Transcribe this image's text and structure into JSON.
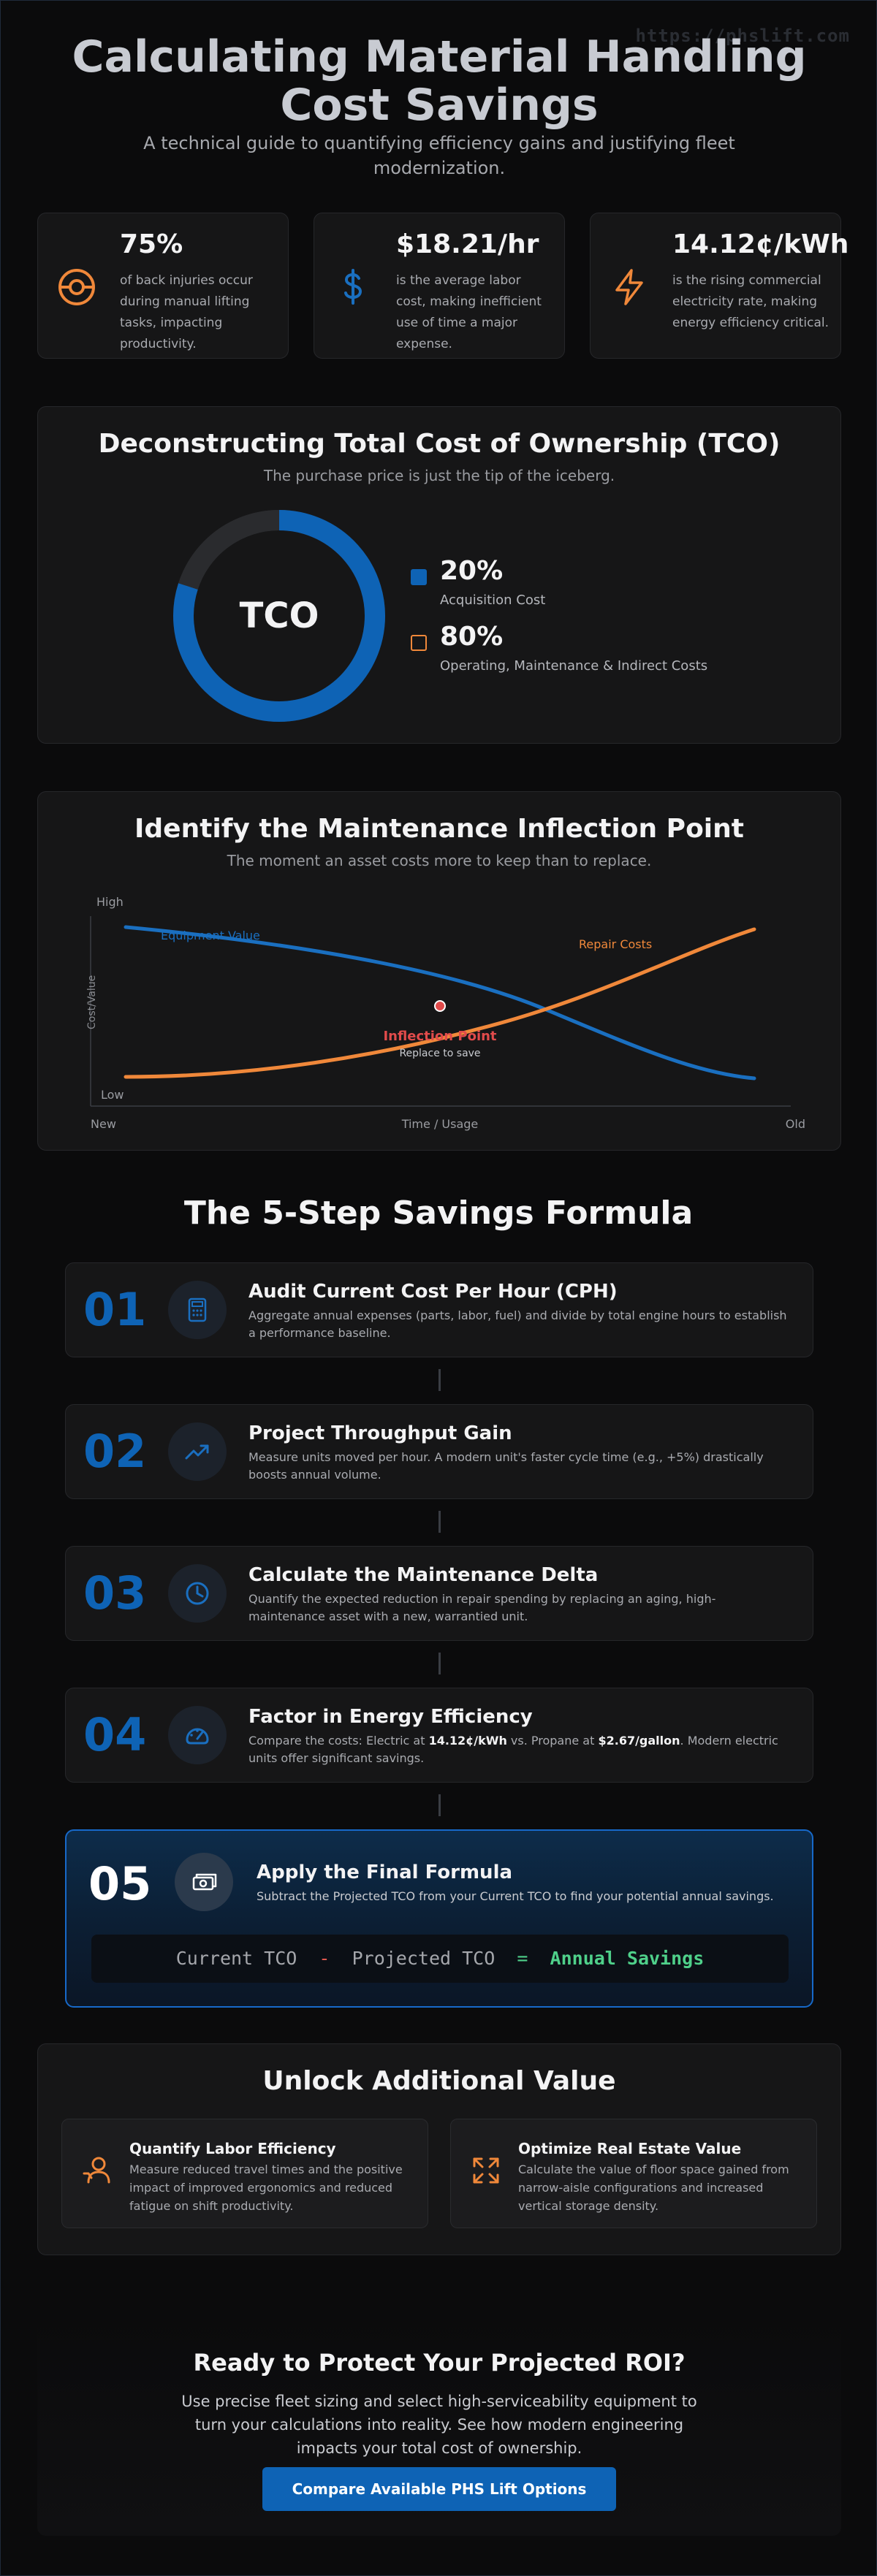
{
  "watermark": "https://phslift.com",
  "hero": {
    "title": "Calculating Material Handling Cost Savings",
    "subtitle": "A technical guide to quantifying efficiency gains and justifying fleet modernization."
  },
  "stats": [
    {
      "icon": "lifebuoy-icon",
      "value": "75%",
      "text": "of back injuries occur during manual lifting tasks, impacting productivity."
    },
    {
      "icon": "dollar-icon",
      "value": "$18.21/hr",
      "text": "is the average labor cost, making inefficient use of time a major expense."
    },
    {
      "icon": "lightning-icon",
      "value": "14.12¢/kWh",
      "text": "is the rising commercial electricity rate, making energy efficiency critical."
    }
  ],
  "tco": {
    "title": "Deconstructing Total Cost of Ownership (TCO)",
    "subtitle": "The purchase price is just the tip of the iceberg.",
    "center_label": "TCO",
    "colors": {
      "acquisition": "#0e63b5",
      "operating": "#f0883a",
      "track": "#2a2b2e"
    },
    "legend": [
      {
        "value": "20%",
        "label": "Acquisition Cost"
      },
      {
        "value": "80%",
        "label": "Operating, Maintenance & Indirect Costs"
      }
    ]
  },
  "chart_data": {
    "type": "pie",
    "categories": [
      "Acquisition Cost",
      "Operating, Maintenance & Indirect Costs"
    ],
    "values": [
      20,
      80
    ],
    "center_label": "TCO"
  },
  "inflection": {
    "title": "Identify the Maintenance Inflection Point",
    "subtitle": "The moment an asset costs more to keep than to replace.",
    "y_high": "High",
    "y_low": "Low",
    "y_axis": "Cost/Value",
    "x_left": "New",
    "x_mid": "Time / Usage",
    "x_right": "Old",
    "value_label": "Equipment Value",
    "repair_label": "Repair Costs",
    "point_label": "Inflection Point",
    "point_sub": "Replace to save",
    "colors": {
      "value": "#1a6fc0",
      "repair": "#f0883a",
      "point": "#e14b4b"
    }
  },
  "formula_section": {
    "title": "The 5-Step Savings Formula",
    "steps": [
      {
        "num": "01",
        "icon": "calculator-icon",
        "title": "Audit Current Cost Per Hour (CPH)",
        "desc": "Aggregate annual expenses (parts, labor, fuel) and divide by total engine hours to establish a performance baseline."
      },
      {
        "num": "02",
        "icon": "trend-up-icon",
        "title": "Project Throughput Gain",
        "desc": "Measure units moved per hour. A modern unit's faster cycle time (e.g., +5%) drastically boosts annual volume."
      },
      {
        "num": "03",
        "icon": "clock-icon",
        "title": "Calculate the Maintenance Delta",
        "desc": "Quantify the expected reduction in repair spending by replacing an aging, high-maintenance asset with a new, warrantied unit."
      },
      {
        "num": "04",
        "icon": "gauge-icon",
        "title": "Factor in Energy Efficiency",
        "desc_pre": "Compare the costs: Electric at ",
        "desc_b1": "14.12¢/kWh",
        "desc_mid": " vs. Propane at ",
        "desc_b2": "$2.67/gallon",
        "desc_post": ". Modern electric units offer significant savings."
      }
    ],
    "final": {
      "num": "05",
      "icon": "cash-icon",
      "title": "Apply the Final Formula",
      "desc": "Subtract the Projected TCO from your Current TCO to find your potential annual savings.",
      "term1": "Current TCO",
      "minus": "-",
      "term2": "Projected TCO",
      "equals": "=",
      "result": "Annual Savings"
    }
  },
  "unlock": {
    "title": "Unlock Additional Value",
    "items": [
      {
        "icon": "worker-icon",
        "title": "Quantify Labor Efficiency",
        "desc": "Measure reduced travel times and the positive impact of improved ergonomics and reduced fatigue on shift productivity."
      },
      {
        "icon": "expand-arrows-icon",
        "title": "Optimize Real Estate Value",
        "desc": "Calculate the value of floor space gained from narrow-aisle configurations and increased vertical storage density."
      }
    ]
  },
  "cta": {
    "title": "Ready to Protect Your Projected ROI?",
    "desc": "Use precise fleet sizing and select high-serviceability equipment to turn your calculations into reality. See how modern engineering impacts your total cost of ownership.",
    "button": "Compare Available PHS Lift Options"
  }
}
